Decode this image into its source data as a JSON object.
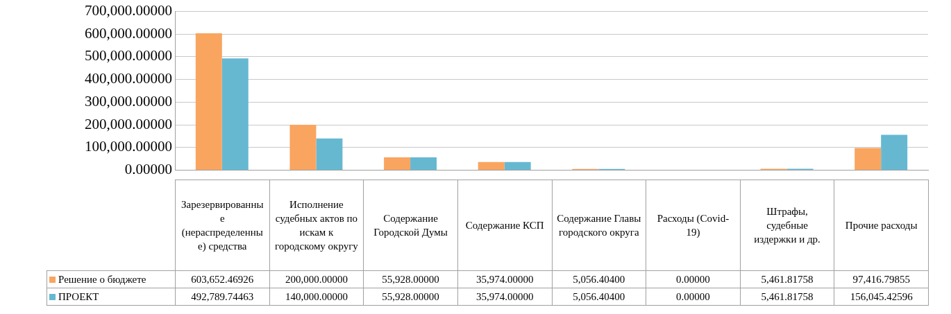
{
  "chart_data": {
    "type": "bar",
    "categories": [
      "Зарезервированные (нераспределенные) средства",
      "Исполнение судебных актов по искам к городскому округу",
      "Содержание Городской Думы",
      "Содержание КСП",
      "Содержание Главы городского округа",
      "Расходы (Covid-19)",
      "Штрафы, судебные издержки и др.",
      "Прочие расходы"
    ],
    "series": [
      {
        "name": "Решение о бюджете",
        "color": "#f9a560",
        "values": [
          603652.46926,
          200000,
          55928,
          35974,
          5056.404,
          0,
          5461.81758,
          97416.79855
        ],
        "value_labels": [
          "603,652.46926",
          "200,000.00000",
          "55,928.00000",
          "35,974.00000",
          "5,056.40400",
          "0.00000",
          "5,461.81758",
          "97,416.79855"
        ]
      },
      {
        "name": "ПРОЕКТ",
        "color": "#66b8d1",
        "values": [
          492789.74463,
          140000,
          55928,
          35974,
          5056.404,
          0,
          5461.81758,
          156045.42596
        ],
        "value_labels": [
          "492,789.74463",
          "140,000.00000",
          "55,928.00000",
          "35,974.00000",
          "5,056.40400",
          "0.00000",
          "5,461.81758",
          "156,045.42596"
        ]
      }
    ],
    "ylim": [
      0,
      700000
    ],
    "yticks": [
      {
        "value": 0,
        "label": "0.00000"
      },
      {
        "value": 100000,
        "label": "100,000.00000"
      },
      {
        "value": 200000,
        "label": "200,000.00000"
      },
      {
        "value": 300000,
        "label": "300,000.00000"
      },
      {
        "value": 400000,
        "label": "400,000.00000"
      },
      {
        "value": 500000,
        "label": "500,000.00000"
      },
      {
        "value": 600000,
        "label": "600,000.00000"
      },
      {
        "value": 700000,
        "label": "700,000.00000"
      }
    ],
    "grid": "y",
    "legend": "bottom"
  }
}
